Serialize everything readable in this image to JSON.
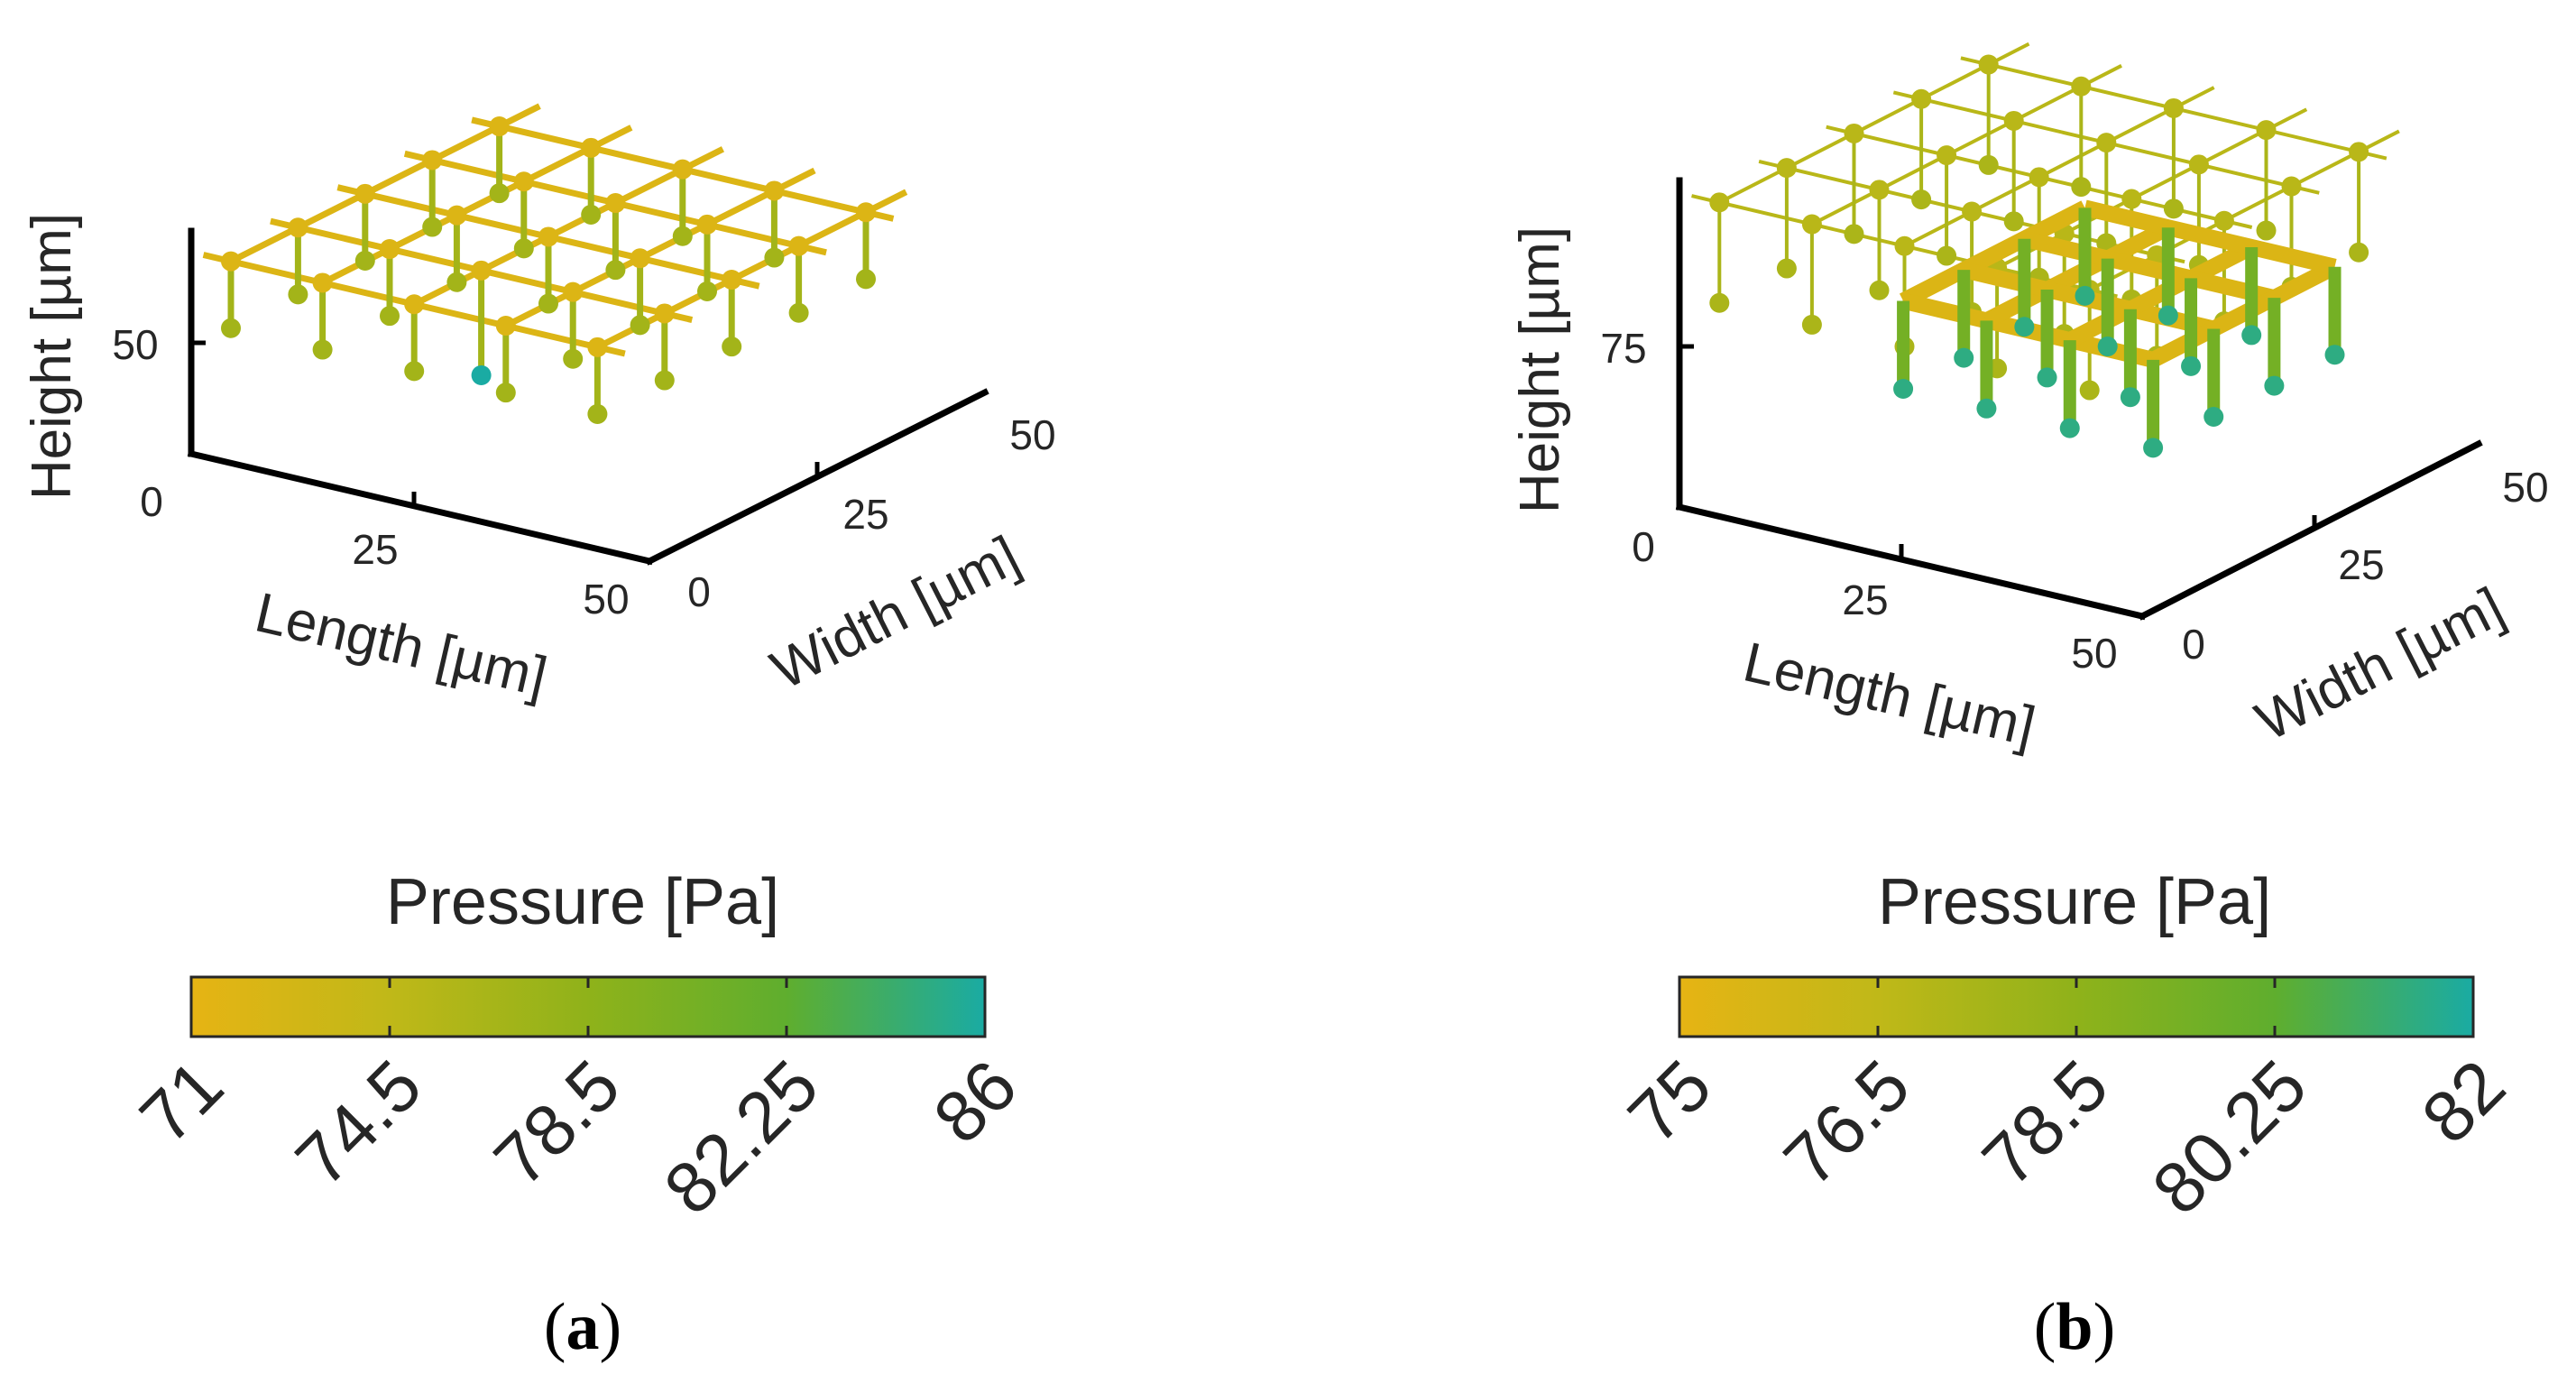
{
  "chart_data": [
    {
      "type": "scatter3d",
      "panel_label": "(a)",
      "panel_letter": "a",
      "xlabel": "Length [µm]",
      "ylabel": "Width [µm]",
      "zlabel": "Height [µm]",
      "x_ticks": [
        "0",
        "25",
        "50"
      ],
      "y_ticks": [
        "0",
        "25",
        "50"
      ],
      "z_ticks": [
        "0",
        "50"
      ],
      "xlim": [
        0,
        50
      ],
      "ylim": [
        0,
        50
      ],
      "zlim": [
        0,
        100
      ],
      "colorbar": {
        "title": "Pressure [Pa]",
        "range": [
          71,
          86
        ],
        "ticks": [
          "71",
          "74.5",
          "78.5",
          "82.25",
          "86"
        ],
        "colors": [
          "#e6b414",
          "#c0b818",
          "#8fb21a",
          "#5fae2e",
          "#1aaba3"
        ]
      },
      "lattice": {
        "nx": 5,
        "ny": 5,
        "x_step": 10,
        "y_step": 10,
        "top_z": 85,
        "node_z": 55,
        "node_pressure": 77.0,
        "top_pressure": 72.0,
        "min_node": {
          "i": 2,
          "j": 1,
          "z": 38,
          "pressure": 86.0
        }
      }
    },
    {
      "type": "scatter3d",
      "panel_label": "(b)",
      "panel_letter": "b",
      "xlabel": "Length [µm]",
      "ylabel": "Width [µm]",
      "zlabel": "Height [µm]",
      "x_ticks": [
        "0",
        "25",
        "50"
      ],
      "y_ticks": [
        "0",
        "25",
        "50"
      ],
      "z_ticks": [
        "0",
        "75"
      ],
      "xlim": [
        0,
        50
      ],
      "ylim": [
        0,
        50
      ],
      "zlim": [
        0,
        130
      ],
      "colorbar": {
        "title": "Pressure [Pa]",
        "range": [
          75,
          82
        ],
        "ticks": [
          "75",
          "76.5",
          "78.5",
          "80.25",
          "82"
        ],
        "colors": [
          "#e6b414",
          "#c0b818",
          "#8fb21a",
          "#5fae2e",
          "#1aaba3"
        ]
      },
      "lattice": {
        "nx": 5,
        "ny": 5,
        "x_step": 10,
        "y_step": 10,
        "top_z": 120,
        "node_z": 80,
        "node_pressure": 77.5,
        "top_pressure": 77.0,
        "center": {
          "size": 3,
          "top_z": 75,
          "bottom_z": 40,
          "top_pressure": 75.5,
          "bottom_pressure": 81.5
        }
      }
    }
  ]
}
